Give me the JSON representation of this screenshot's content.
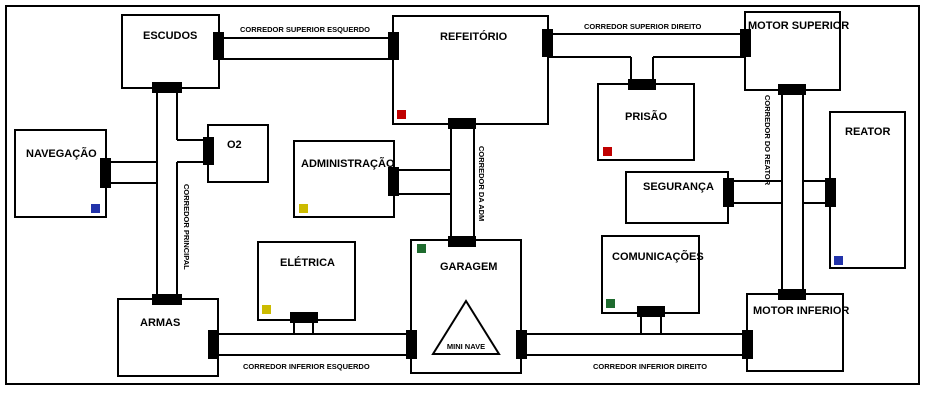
{
  "rooms": {
    "escudos": "ESCUDOS",
    "refeitorio": "REFEITÓRIO",
    "motor_superior": "MOTOR SUPERIOR",
    "navegacao": "NAVEGAÇÃO",
    "o2": "O2",
    "administracao": "ADMINISTRAÇÃO",
    "prisao": "PRISÃO",
    "reator": "REATOR",
    "seguranca": "SEGURANÇA",
    "eletrica": "ELÉTRICA",
    "garagem": "GARAGEM",
    "comunicacoes": "COMUNICAÇÕES",
    "armas": "ARMAS",
    "motor_inferior": "MOTOR INFERIOR"
  },
  "corridors": {
    "superior_esquerdo": "CORREDOR SUPERIOR ESQUERDO",
    "superior_direito": "CORREDOR SUPERIOR DIREITO",
    "principal": "CORREDOR PRINCIPAL",
    "da_adm": "CORREDOR DA ADM",
    "do_reator": "CORREDOR DO REATOR",
    "inferior_esquerdo": "CORREDOR INFERIOR ESQUERDO",
    "inferior_direito": "CORREDOR INFERIOR DIREITO"
  },
  "mini_nave": "MINI NAVE",
  "colors": {
    "red": "#c00000",
    "blue": "#2233aa",
    "yellow": "#ccbb00",
    "green": "#1e6b2e"
  }
}
